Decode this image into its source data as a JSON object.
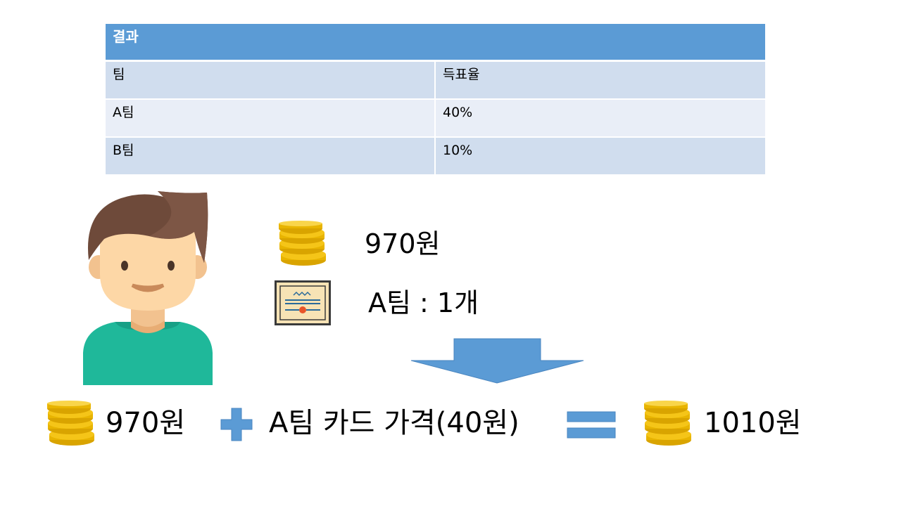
{
  "table": {
    "title": "결과",
    "columns": [
      "팀",
      "득표율"
    ],
    "rows": [
      {
        "team": "A팀",
        "rate": "40%"
      },
      {
        "team": "B팀",
        "rate": "10%"
      }
    ]
  },
  "wallet": {
    "money": "970원",
    "card_count": "A팀 : 1개"
  },
  "equation": {
    "money": "970원",
    "card_value": "A팀 카드 가격(40원)",
    "total": "1010원"
  },
  "colors": {
    "header": "#5b9bd5",
    "row_odd": "#d0ddee",
    "row_even": "#e9eef7",
    "arrow": "#5b9bd5",
    "coin": "#f5c518"
  },
  "icons": {
    "avatar": "person-avatar",
    "coins": "coin-stack-icon",
    "card": "certificate-card-icon",
    "plus": "plus-icon",
    "equals": "equals-icon",
    "arrow": "down-arrow"
  }
}
